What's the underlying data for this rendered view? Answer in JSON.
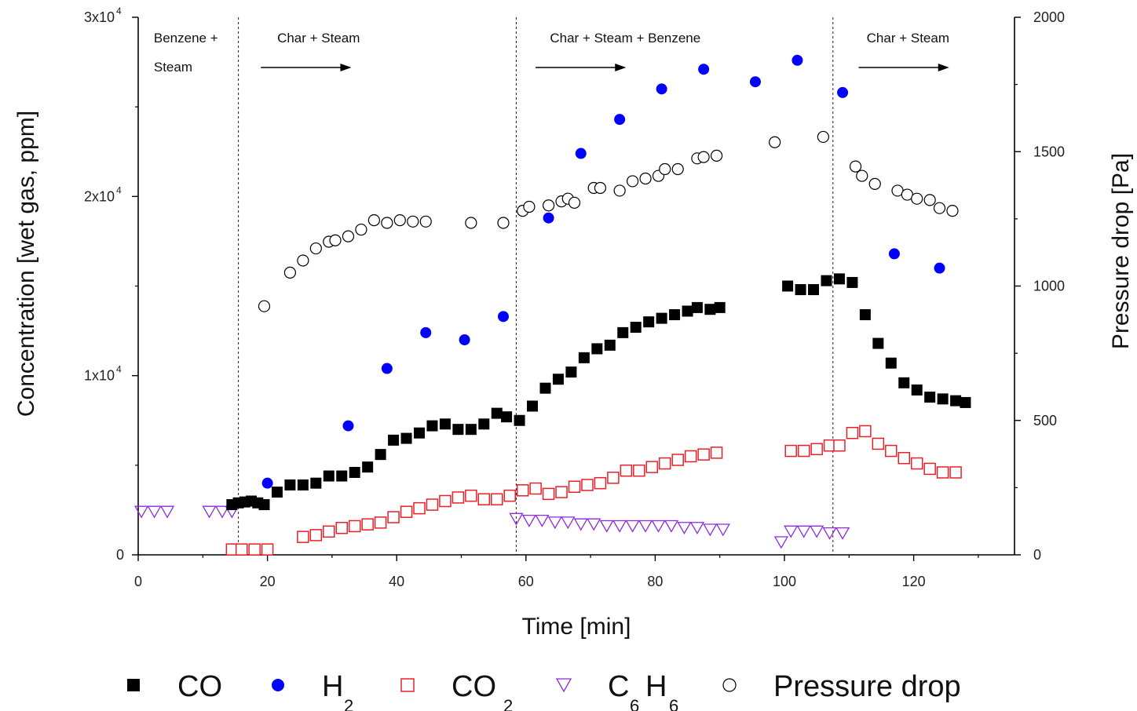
{
  "chart_data": {
    "type": "scatter",
    "xlabel": "Time [min]",
    "ylabel_left": "Concentration [wet gas, ppm]",
    "ylabel_right": "Pressure drop [Pa]",
    "xlim": [
      0,
      135
    ],
    "ylim_left": [
      0,
      30000
    ],
    "ylim_right": [
      0,
      2000
    ],
    "x_ticks": [
      0,
      20,
      40,
      60,
      80,
      100,
      120
    ],
    "y_left_ticks": [
      {
        "value": 0,
        "mantissa": "0",
        "exp": ""
      },
      {
        "value": 10000,
        "mantissa": "1x10",
        "exp": "4"
      },
      {
        "value": 20000,
        "mantissa": "2x10",
        "exp": "4"
      },
      {
        "value": 30000,
        "mantissa": "3x10",
        "exp": "4"
      }
    ],
    "y_right_ticks": [
      0,
      500,
      1000,
      1500,
      2000
    ],
    "phase_lines": [
      15.5,
      58.5,
      107.5
    ],
    "phases": [
      {
        "lines": [
          "Benzene +",
          "Steam"
        ],
        "x": 1.2,
        "arrow": null
      },
      {
        "lines": [
          "Char + Steam"
        ],
        "x": 20.3,
        "arrow": [
          18.5,
          32.5
        ]
      },
      {
        "lines": [
          "Char + Steam + Benzene"
        ],
        "x": 62.5,
        "arrow": [
          61,
          75
        ]
      },
      {
        "lines": [
          "Char + Steam"
        ],
        "x": 111.5,
        "arrow": [
          111,
          125
        ]
      }
    ],
    "series": [
      {
        "name": "CO",
        "sub": "",
        "marker": "square-filled",
        "color": "#000000",
        "axis": "left",
        "points": [
          [
            14.5,
            2800
          ],
          [
            15.5,
            2900
          ],
          [
            16.5,
            2950
          ],
          [
            17.5,
            3000
          ],
          [
            18.5,
            2900
          ],
          [
            19.5,
            2800
          ],
          [
            21.5,
            3500
          ],
          [
            23.5,
            3900
          ],
          [
            25.5,
            3900
          ],
          [
            27.5,
            4000
          ],
          [
            29.5,
            4400
          ],
          [
            31.5,
            4400
          ],
          [
            33.5,
            4600
          ],
          [
            35.5,
            4900
          ],
          [
            37.5,
            5600
          ],
          [
            39.5,
            6400
          ],
          [
            41.5,
            6500
          ],
          [
            43.5,
            6800
          ],
          [
            45.5,
            7200
          ],
          [
            47.5,
            7300
          ],
          [
            49.5,
            7000
          ],
          [
            51.5,
            7000
          ],
          [
            53.5,
            7300
          ],
          [
            55.5,
            7900
          ],
          [
            57,
            7700
          ],
          [
            59,
            7500
          ],
          [
            61,
            8300
          ],
          [
            63,
            9300
          ],
          [
            65,
            9800
          ],
          [
            67,
            10200
          ],
          [
            69,
            11000
          ],
          [
            71,
            11500
          ],
          [
            73,
            11700
          ],
          [
            75,
            12400
          ],
          [
            77,
            12700
          ],
          [
            79,
            13000
          ],
          [
            81,
            13200
          ],
          [
            83,
            13400
          ],
          [
            85,
            13600
          ],
          [
            86.5,
            13800
          ],
          [
            88.5,
            13700
          ],
          [
            90,
            13800
          ],
          [
            100.5,
            15000
          ],
          [
            102.5,
            14800
          ],
          [
            104.5,
            14800
          ],
          [
            106.5,
            15300
          ],
          [
            108.5,
            15400
          ],
          [
            110.5,
            15200
          ],
          [
            112.5,
            13400
          ],
          [
            114.5,
            11800
          ],
          [
            116.5,
            10700
          ],
          [
            118.5,
            9600
          ],
          [
            120.5,
            9200
          ],
          [
            122.5,
            8800
          ],
          [
            124.5,
            8700
          ],
          [
            126.5,
            8600
          ],
          [
            128,
            8500
          ]
        ]
      },
      {
        "name": "H",
        "sub": "2",
        "marker": "circle-filled",
        "color": "#0000ff",
        "axis": "left",
        "points": [
          [
            20,
            4000
          ],
          [
            32.5,
            7200
          ],
          [
            38.5,
            10400
          ],
          [
            44.5,
            12400
          ],
          [
            50.5,
            12000
          ],
          [
            56.5,
            13300
          ],
          [
            63.5,
            18800
          ],
          [
            68.5,
            22400
          ],
          [
            74.5,
            24300
          ],
          [
            81,
            26000
          ],
          [
            87.5,
            27100
          ],
          [
            95.5,
            26400
          ],
          [
            102,
            27600
          ],
          [
            109,
            25800
          ],
          [
            117,
            16800
          ],
          [
            124,
            16000
          ]
        ]
      },
      {
        "name": "CO",
        "sub": "2",
        "marker": "square-open",
        "color": "#e8202a",
        "axis": "left",
        "points": [
          [
            14.5,
            300
          ],
          [
            16,
            300
          ],
          [
            18,
            300
          ],
          [
            20,
            300
          ],
          [
            25.5,
            1000
          ],
          [
            27.5,
            1100
          ],
          [
            29.5,
            1300
          ],
          [
            31.5,
            1500
          ],
          [
            33.5,
            1600
          ],
          [
            35.5,
            1700
          ],
          [
            37.5,
            1800
          ],
          [
            39.5,
            2100
          ],
          [
            41.5,
            2400
          ],
          [
            43.5,
            2600
          ],
          [
            45.5,
            2800
          ],
          [
            47.5,
            3000
          ],
          [
            49.5,
            3200
          ],
          [
            51.5,
            3300
          ],
          [
            53.5,
            3100
          ],
          [
            55.5,
            3100
          ],
          [
            57.5,
            3300
          ],
          [
            59.5,
            3600
          ],
          [
            61.5,
            3700
          ],
          [
            63.5,
            3400
          ],
          [
            65.5,
            3500
          ],
          [
            67.5,
            3800
          ],
          [
            69.5,
            3900
          ],
          [
            71.5,
            4000
          ],
          [
            73.5,
            4300
          ],
          [
            75.5,
            4700
          ],
          [
            77.5,
            4700
          ],
          [
            79.5,
            4900
          ],
          [
            81.5,
            5100
          ],
          [
            83.5,
            5300
          ],
          [
            85.5,
            5500
          ],
          [
            87.5,
            5600
          ],
          [
            89.5,
            5700
          ],
          [
            101,
            5800
          ],
          [
            103,
            5800
          ],
          [
            105,
            5900
          ],
          [
            107,
            6100
          ],
          [
            108.5,
            6100
          ],
          [
            110.5,
            6800
          ],
          [
            112.5,
            6900
          ],
          [
            114.5,
            6200
          ],
          [
            116.5,
            5800
          ],
          [
            118.5,
            5400
          ],
          [
            120.5,
            5100
          ],
          [
            122.5,
            4800
          ],
          [
            124.5,
            4600
          ],
          [
            126.5,
            4600
          ]
        ]
      },
      {
        "name": "C",
        "sub": "6",
        "name2": "H",
        "sub2": "6",
        "marker": "triangle-down-open",
        "color": "#8a2be2",
        "axis": "left",
        "points": [
          [
            0.5,
            2400
          ],
          [
            2.5,
            2400
          ],
          [
            4.5,
            2400
          ],
          [
            11,
            2400
          ],
          [
            13,
            2400
          ],
          [
            14.5,
            2400
          ],
          [
            58.5,
            2000
          ],
          [
            60.5,
            1900
          ],
          [
            62.5,
            1900
          ],
          [
            64.5,
            1800
          ],
          [
            66.5,
            1800
          ],
          [
            68.5,
            1700
          ],
          [
            70.5,
            1700
          ],
          [
            72.5,
            1600
          ],
          [
            74.5,
            1600
          ],
          [
            76.5,
            1600
          ],
          [
            78.5,
            1600
          ],
          [
            80.5,
            1600
          ],
          [
            82.5,
            1600
          ],
          [
            84.5,
            1500
          ],
          [
            86.5,
            1500
          ],
          [
            88.5,
            1400
          ],
          [
            90.5,
            1400
          ],
          [
            99.5,
            700
          ],
          [
            101,
            1300
          ],
          [
            103,
            1300
          ],
          [
            105,
            1300
          ],
          [
            107,
            1200
          ],
          [
            109,
            1200
          ]
        ]
      },
      {
        "name": "Pressure drop",
        "sub": "",
        "marker": "circle-open",
        "color": "#000000",
        "axis": "right",
        "points": [
          [
            19.5,
            925
          ],
          [
            23.5,
            1050
          ],
          [
            25.5,
            1095
          ],
          [
            27.5,
            1140
          ],
          [
            29.5,
            1165
          ],
          [
            30.5,
            1170
          ],
          [
            32.5,
            1185
          ],
          [
            34.5,
            1210
          ],
          [
            36.5,
            1245
          ],
          [
            38.5,
            1235
          ],
          [
            40.5,
            1245
          ],
          [
            42.5,
            1240
          ],
          [
            44.5,
            1240
          ],
          [
            51.5,
            1235
          ],
          [
            56.5,
            1235
          ],
          [
            59.5,
            1280
          ],
          [
            60.5,
            1295
          ],
          [
            63.5,
            1300
          ],
          [
            65.5,
            1315
          ],
          [
            66.5,
            1325
          ],
          [
            67.5,
            1310
          ],
          [
            70.5,
            1365
          ],
          [
            71.5,
            1365
          ],
          [
            74.5,
            1355
          ],
          [
            76.5,
            1390
          ],
          [
            78.5,
            1400
          ],
          [
            80.5,
            1410
          ],
          [
            81.5,
            1435
          ],
          [
            83.5,
            1435
          ],
          [
            86.5,
            1475
          ],
          [
            87.5,
            1480
          ],
          [
            89.5,
            1485
          ],
          [
            98.5,
            1535
          ],
          [
            106,
            1555
          ],
          [
            111,
            1445
          ],
          [
            112,
            1410
          ],
          [
            114,
            1380
          ],
          [
            117.5,
            1355
          ],
          [
            119,
            1340
          ],
          [
            120.5,
            1325
          ],
          [
            122.5,
            1320
          ],
          [
            124,
            1290
          ],
          [
            126,
            1280
          ]
        ]
      }
    ]
  }
}
